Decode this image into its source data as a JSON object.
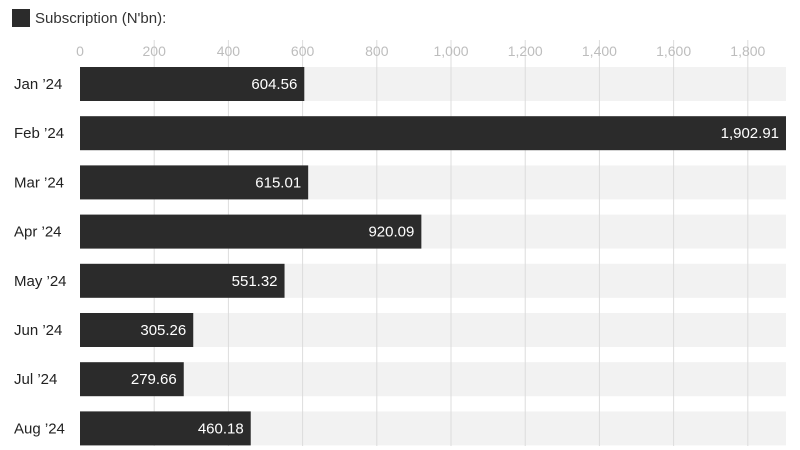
{
  "chart_data": {
    "type": "bar",
    "orientation": "horizontal",
    "series": [
      {
        "name": "Subscription (N'bn):",
        "color": "#2b2b2b",
        "values": [
          604.56,
          1902.91,
          615.01,
          920.09,
          551.32,
          305.26,
          279.66,
          460.18
        ]
      }
    ],
    "categories": [
      "Jan ’24",
      "Feb ’24",
      "Mar ’24",
      "Apr ’24",
      "May ’24",
      "Jun ’24",
      "Jul ’24",
      "Aug ’24"
    ],
    "value_labels": [
      "604.56",
      "1,902.91",
      "615.01",
      "920.09",
      "551.32",
      "305.26",
      "279.66",
      "460.18"
    ],
    "xticks": [
      0,
      200,
      400,
      600,
      800,
      1000,
      1200,
      1400,
      1600,
      1800
    ],
    "xtick_labels": [
      "0",
      "200",
      "400",
      "600",
      "800",
      "1,000",
      "1,200",
      "1,400",
      "1,600",
      "1,800"
    ],
    "xlim": [
      0,
      1902.91
    ],
    "grid": true,
    "legend_position": "top-left",
    "title": "",
    "xlabel": "",
    "ylabel": "",
    "colors": {
      "bar": "#2b2b2b",
      "band": "#f2f2f2",
      "grid": "#dcdcdc",
      "tick_text": "#bdbdbd",
      "category_text": "#222222",
      "value_text": "#ffffff"
    }
  }
}
